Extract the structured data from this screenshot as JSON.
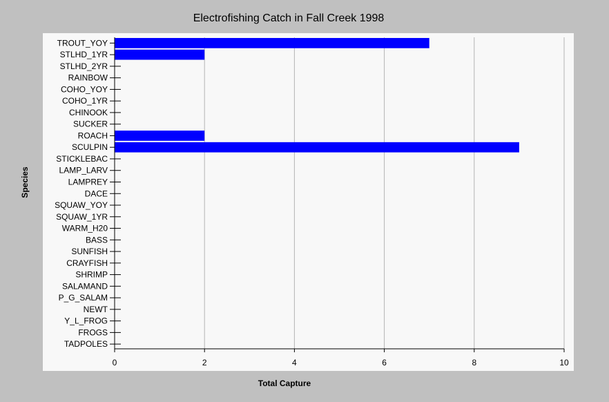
{
  "chart_data": {
    "type": "bar",
    "orientation": "horizontal",
    "title": "Electrofishing Catch in Fall Creek 1998",
    "xlabel": "Total Capture",
    "ylabel": "Species",
    "xlim": [
      0,
      10
    ],
    "xticks": [
      0,
      2,
      4,
      6,
      8,
      10
    ],
    "grid": true,
    "bar_color": "#0000ff",
    "categories": [
      "TROUT_YOY",
      "STLHD_1YR",
      "STLHD_2YR",
      "RAINBOW",
      "COHO_YOY",
      "COHO_1YR",
      "CHINOOK",
      "SUCKER",
      "ROACH",
      "SCULPIN",
      "STICKLEBAC",
      "LAMP_LARV",
      "LAMPREY",
      "DACE",
      "SQUAW_YOY",
      "SQUAW_1YR",
      "WARM_H20",
      "BASS",
      "SUNFISH",
      "CRAYFISH",
      "SHRIMP",
      "SALAMAND",
      "P_G_SALAM",
      "NEWT",
      "Y_L_FROG",
      "FROGS",
      "TADPOLES"
    ],
    "values": [
      7,
      2,
      0,
      0,
      0,
      0,
      0,
      0,
      2,
      9,
      0,
      0,
      0,
      0,
      0,
      0,
      0,
      0,
      0,
      0,
      0,
      0,
      0,
      0,
      0,
      0,
      0
    ]
  }
}
